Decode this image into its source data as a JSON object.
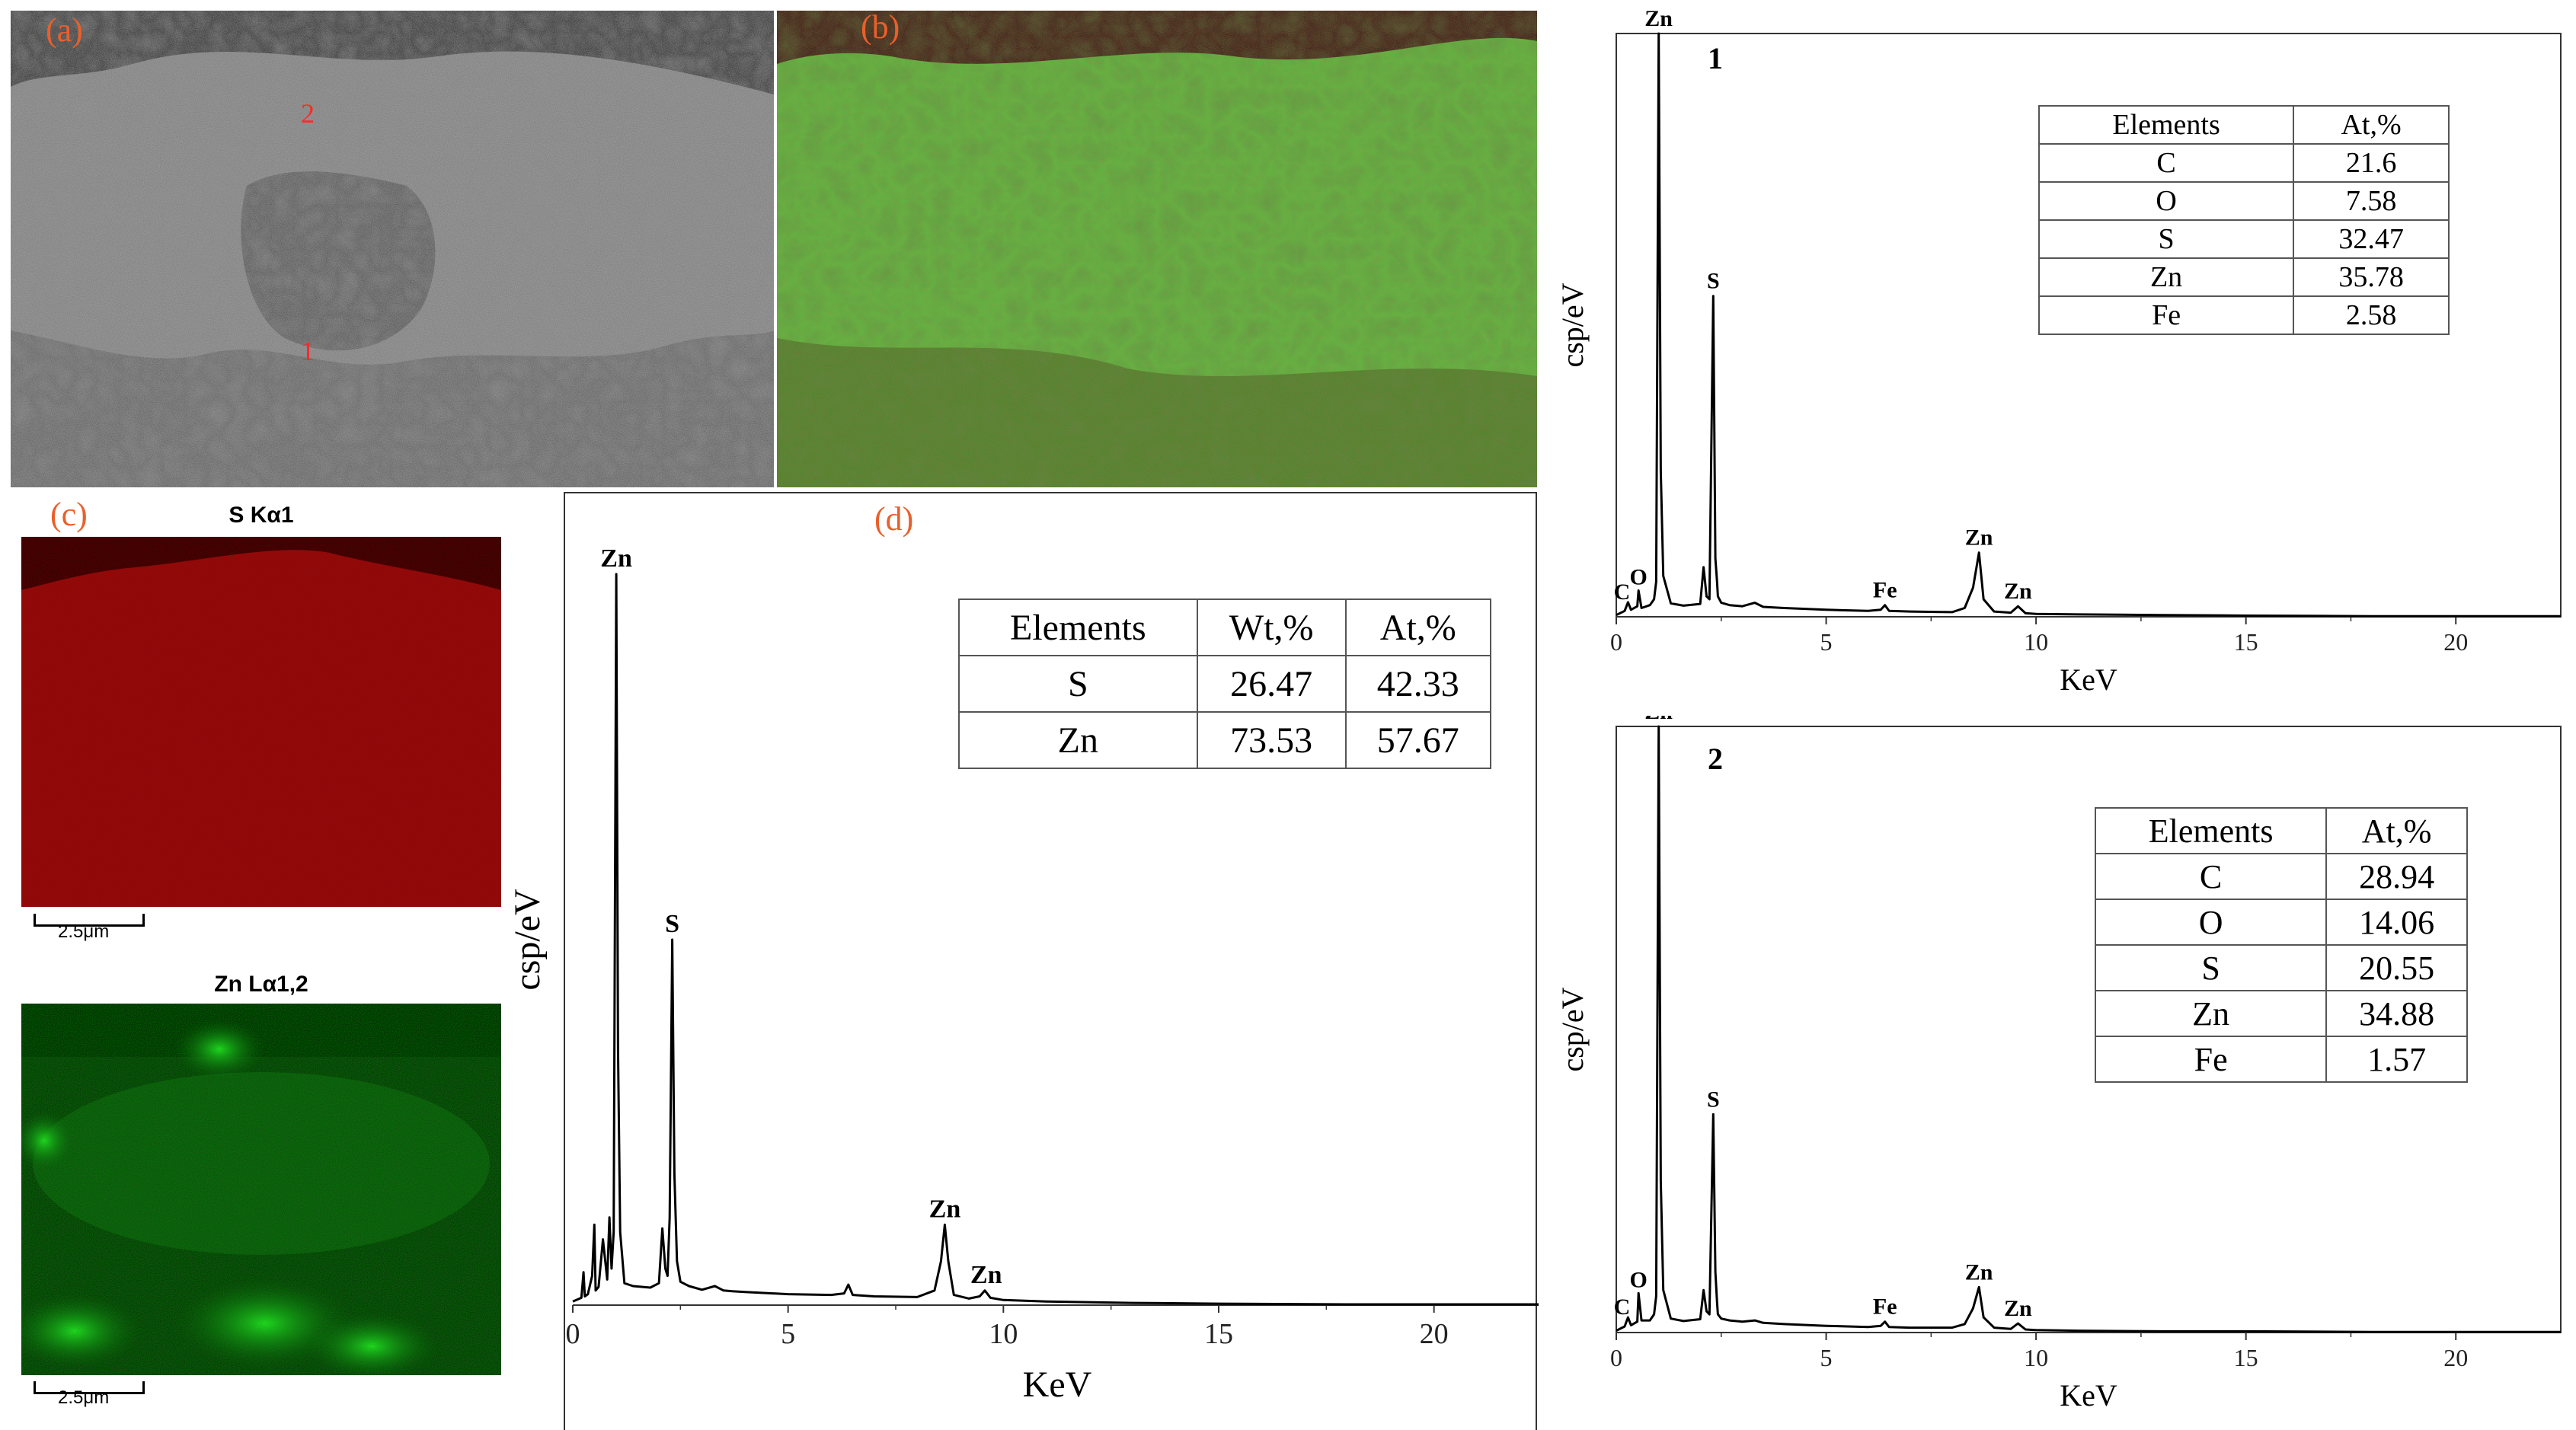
{
  "panels": {
    "a": {
      "label": "(a)",
      "points": [
        "2",
        "1"
      ]
    },
    "b": {
      "label": "(b)"
    },
    "c": {
      "label": "(c)",
      "maps": [
        {
          "title": "S Kα1",
          "color": "#8a0d0d",
          "scale": "2.5μm"
        },
        {
          "title": "Zn Lα1,2",
          "color": "#1fd21f",
          "scale": "2.5μm"
        }
      ]
    },
    "d": {
      "label": "(d)"
    }
  },
  "chart_data": [
    {
      "id": "d",
      "type": "line",
      "xlabel": "KeV",
      "ylabel": "csp/eV",
      "xlim": [
        0,
        22.5
      ],
      "xticks": [
        0,
        5,
        10,
        15,
        20
      ],
      "ylim": [
        0,
        100
      ],
      "series": [
        {
          "x": [
            0.0,
            0.2,
            0.25,
            0.28,
            0.35,
            0.45,
            0.5,
            0.53,
            0.6,
            0.7,
            0.8,
            0.85,
            0.9,
            0.95,
            1.01,
            1.05,
            1.1,
            1.2,
            1.4,
            1.8,
            2.0,
            2.08,
            2.15,
            2.2,
            2.25,
            2.31,
            2.36,
            2.42,
            2.5,
            2.7,
            3.0,
            3.3,
            3.5,
            3.7,
            4.0,
            5.0,
            6.0,
            6.3,
            6.4,
            6.5,
            7.0,
            8.0,
            8.4,
            8.55,
            8.64,
            8.72,
            8.85,
            9.2,
            9.45,
            9.57,
            9.7,
            10.0,
            11.0,
            13.0,
            15.0,
            18.0,
            20.0,
            22.5
          ],
          "y": [
            0.5,
            1.0,
            4.5,
            1.2,
            1.5,
            4.0,
            11.0,
            2.0,
            2.5,
            9.0,
            3.5,
            12.0,
            5.0,
            10.0,
            100,
            35,
            10,
            3.0,
            2.6,
            2.4,
            3.0,
            10.5,
            5.0,
            4.0,
            12.0,
            50,
            18.0,
            6.0,
            3.2,
            2.6,
            2.1,
            2.6,
            2.0,
            1.9,
            1.8,
            1.5,
            1.4,
            1.6,
            2.8,
            1.4,
            1.2,
            1.1,
            2.0,
            6.0,
            11.0,
            6.0,
            1.4,
            0.9,
            1.2,
            2.0,
            1.0,
            0.7,
            0.5,
            0.3,
            0.2,
            0.1,
            0.1,
            0.1
          ]
        }
      ],
      "peak_labels": [
        {
          "text": "Zn",
          "x": 1.01,
          "y": 100
        },
        {
          "text": "S",
          "x": 2.31,
          "y": 50
        },
        {
          "text": "Zn",
          "x": 8.64,
          "y": 11
        },
        {
          "text": "Zn",
          "x": 9.6,
          "y": 2
        }
      ],
      "table": {
        "headers": [
          "Elements",
          "Wt,%",
          "At,%"
        ],
        "rows": [
          [
            "S",
            "26.47",
            "42.33"
          ],
          [
            "Zn",
            "73.53",
            "57.67"
          ]
        ]
      }
    },
    {
      "id": "1",
      "title": "1",
      "type": "line",
      "xlabel": "KeV",
      "ylabel": "csp/eV",
      "xlim": [
        0,
        22.5
      ],
      "xticks": [
        0,
        5,
        10,
        15,
        20
      ],
      "ylim": [
        0,
        100
      ],
      "series": [
        {
          "x": [
            0.0,
            0.2,
            0.28,
            0.35,
            0.5,
            0.53,
            0.6,
            0.8,
            0.9,
            0.95,
            1.01,
            1.06,
            1.12,
            1.3,
            1.6,
            2.0,
            2.08,
            2.15,
            2.22,
            2.31,
            2.36,
            2.4,
            2.42,
            2.5,
            2.7,
            3.0,
            3.3,
            3.5,
            4.0,
            5.0,
            6.0,
            6.3,
            6.4,
            6.5,
            7.0,
            8.0,
            8.3,
            8.5,
            8.64,
            8.75,
            9.0,
            9.4,
            9.57,
            9.75,
            10.0,
            11.0,
            13.0,
            15.0,
            18.0,
            20.0,
            22.5
          ],
          "y": [
            0.3,
            1.0,
            2.5,
            1.2,
            1.8,
            4.5,
            1.5,
            2.0,
            3.0,
            6.0,
            100,
            25,
            7.0,
            2.3,
            1.9,
            2.2,
            8.5,
            3.5,
            3.0,
            55,
            10,
            6.0,
            3.5,
            2.4,
            2.0,
            1.8,
            2.4,
            1.7,
            1.5,
            1.2,
            1.0,
            1.2,
            2.0,
            1.0,
            0.9,
            0.8,
            1.5,
            5.0,
            11,
            3.0,
            0.9,
            0.7,
            1.8,
            0.6,
            0.5,
            0.4,
            0.3,
            0.2,
            0.1,
            0.1,
            0.1
          ]
        }
      ],
      "peak_labels": [
        {
          "text": "Zn",
          "x": 1.01,
          "y": 100
        },
        {
          "text": "S",
          "x": 2.31,
          "y": 55
        },
        {
          "text": "Fe",
          "x": 6.4,
          "y": 2
        },
        {
          "text": "Zn",
          "x": 8.64,
          "y": 11
        },
        {
          "text": "Zn",
          "x": 9.57,
          "y": 1.8
        },
        {
          "text": "O",
          "x": 0.53,
          "y": 4.5
        },
        {
          "text": "C",
          "x": 0.28,
          "y": 2.5
        }
      ],
      "table": {
        "headers": [
          "Elements",
          "At,%"
        ],
        "rows": [
          [
            "C",
            "21.6"
          ],
          [
            "O",
            "7.58"
          ],
          [
            "S",
            "32.47"
          ],
          [
            "Zn",
            "35.78"
          ],
          [
            "Fe",
            "2.58"
          ]
        ]
      }
    },
    {
      "id": "2",
      "title": "2",
      "type": "line",
      "xlabel": "KeV",
      "ylabel": "csp/eV",
      "xlim": [
        0,
        22.5
      ],
      "xticks": [
        0,
        5,
        10,
        15,
        20
      ],
      "ylim": [
        0,
        100
      ],
      "series": [
        {
          "x": [
            0.0,
            0.2,
            0.28,
            0.35,
            0.5,
            0.53,
            0.6,
            0.8,
            0.9,
            0.95,
            1.01,
            1.06,
            1.12,
            1.3,
            1.6,
            2.0,
            2.08,
            2.15,
            2.22,
            2.31,
            2.36,
            2.4,
            2.42,
            2.5,
            2.7,
            3.0,
            3.3,
            3.5,
            4.0,
            5.0,
            6.0,
            6.3,
            6.4,
            6.5,
            7.0,
            8.0,
            8.3,
            8.5,
            8.64,
            8.75,
            9.0,
            9.4,
            9.57,
            9.75,
            10.0,
            11.0,
            13.0,
            15.0,
            18.0,
            20.0,
            22.5
          ],
          "y": [
            0.3,
            1.0,
            2.5,
            1.2,
            1.8,
            6.5,
            2.0,
            2.0,
            3.0,
            6.0,
            100,
            25,
            7.0,
            2.3,
            1.9,
            2.2,
            7.0,
            3.5,
            3.0,
            36,
            10,
            5.0,
            3.0,
            2.3,
            2.0,
            1.8,
            2.0,
            1.6,
            1.4,
            1.1,
            0.9,
            1.1,
            1.8,
            0.9,
            0.8,
            0.8,
            1.4,
            4.0,
            7.5,
            2.5,
            0.8,
            0.6,
            1.5,
            0.5,
            0.4,
            0.3,
            0.2,
            0.2,
            0.1,
            0.1,
            0.1
          ]
        }
      ],
      "peak_labels": [
        {
          "text": "Zn",
          "x": 1.01,
          "y": 100
        },
        {
          "text": "S",
          "x": 2.31,
          "y": 36
        },
        {
          "text": "Fe",
          "x": 6.4,
          "y": 1.8
        },
        {
          "text": "Zn",
          "x": 8.64,
          "y": 7.5
        },
        {
          "text": "Zn",
          "x": 9.57,
          "y": 1.5
        },
        {
          "text": "O",
          "x": 0.53,
          "y": 6.5
        },
        {
          "text": "C",
          "x": 0.28,
          "y": 2.5
        }
      ],
      "table": {
        "headers": [
          "Elements",
          "At,%"
        ],
        "rows": [
          [
            "C",
            "28.94"
          ],
          [
            "O",
            "14.06"
          ],
          [
            "S",
            "20.55"
          ],
          [
            "Zn",
            "34.88"
          ],
          [
            "Fe",
            "1.57"
          ]
        ]
      }
    }
  ]
}
